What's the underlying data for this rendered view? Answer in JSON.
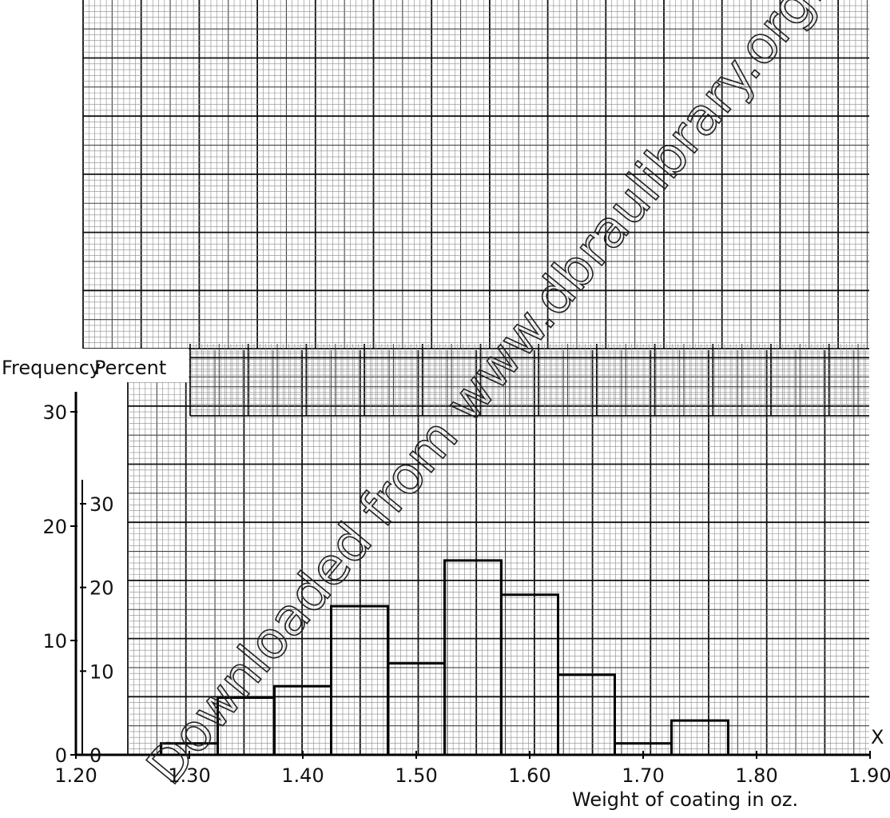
{
  "chart_data": {
    "type": "bar",
    "title": "",
    "xlabel": "Weight of coating in oz.",
    "x_axis_letter": "X",
    "y_axis_labels": [
      "Frequency",
      "Percent"
    ],
    "grid": true,
    "bin_width": 0.05,
    "bins_start": [
      1.275,
      1.325,
      1.375,
      1.425,
      1.475,
      1.525,
      1.575,
      1.625,
      1.675,
      1.725
    ],
    "series": [
      {
        "values": [
          1,
          5,
          6,
          13,
          8,
          17,
          14,
          7,
          1,
          3
        ]
      }
    ],
    "frequency_axis": {
      "ylim": [
        0,
        30
      ],
      "ticks": [
        "0",
        "10",
        "20",
        "30"
      ]
    },
    "percent_axis": {
      "ylim": [
        0,
        30
      ],
      "ticks": [
        "0",
        "10",
        "20",
        "30"
      ]
    },
    "xlim": [
      1.2,
      1.9
    ],
    "x_ticks": [
      "1.20",
      "1.30",
      "1.40",
      "1.50",
      "1.60",
      "1.70",
      "1.80",
      "1.90"
    ],
    "watermark": "Downloaded from www.dbraulibrary.org.in"
  }
}
